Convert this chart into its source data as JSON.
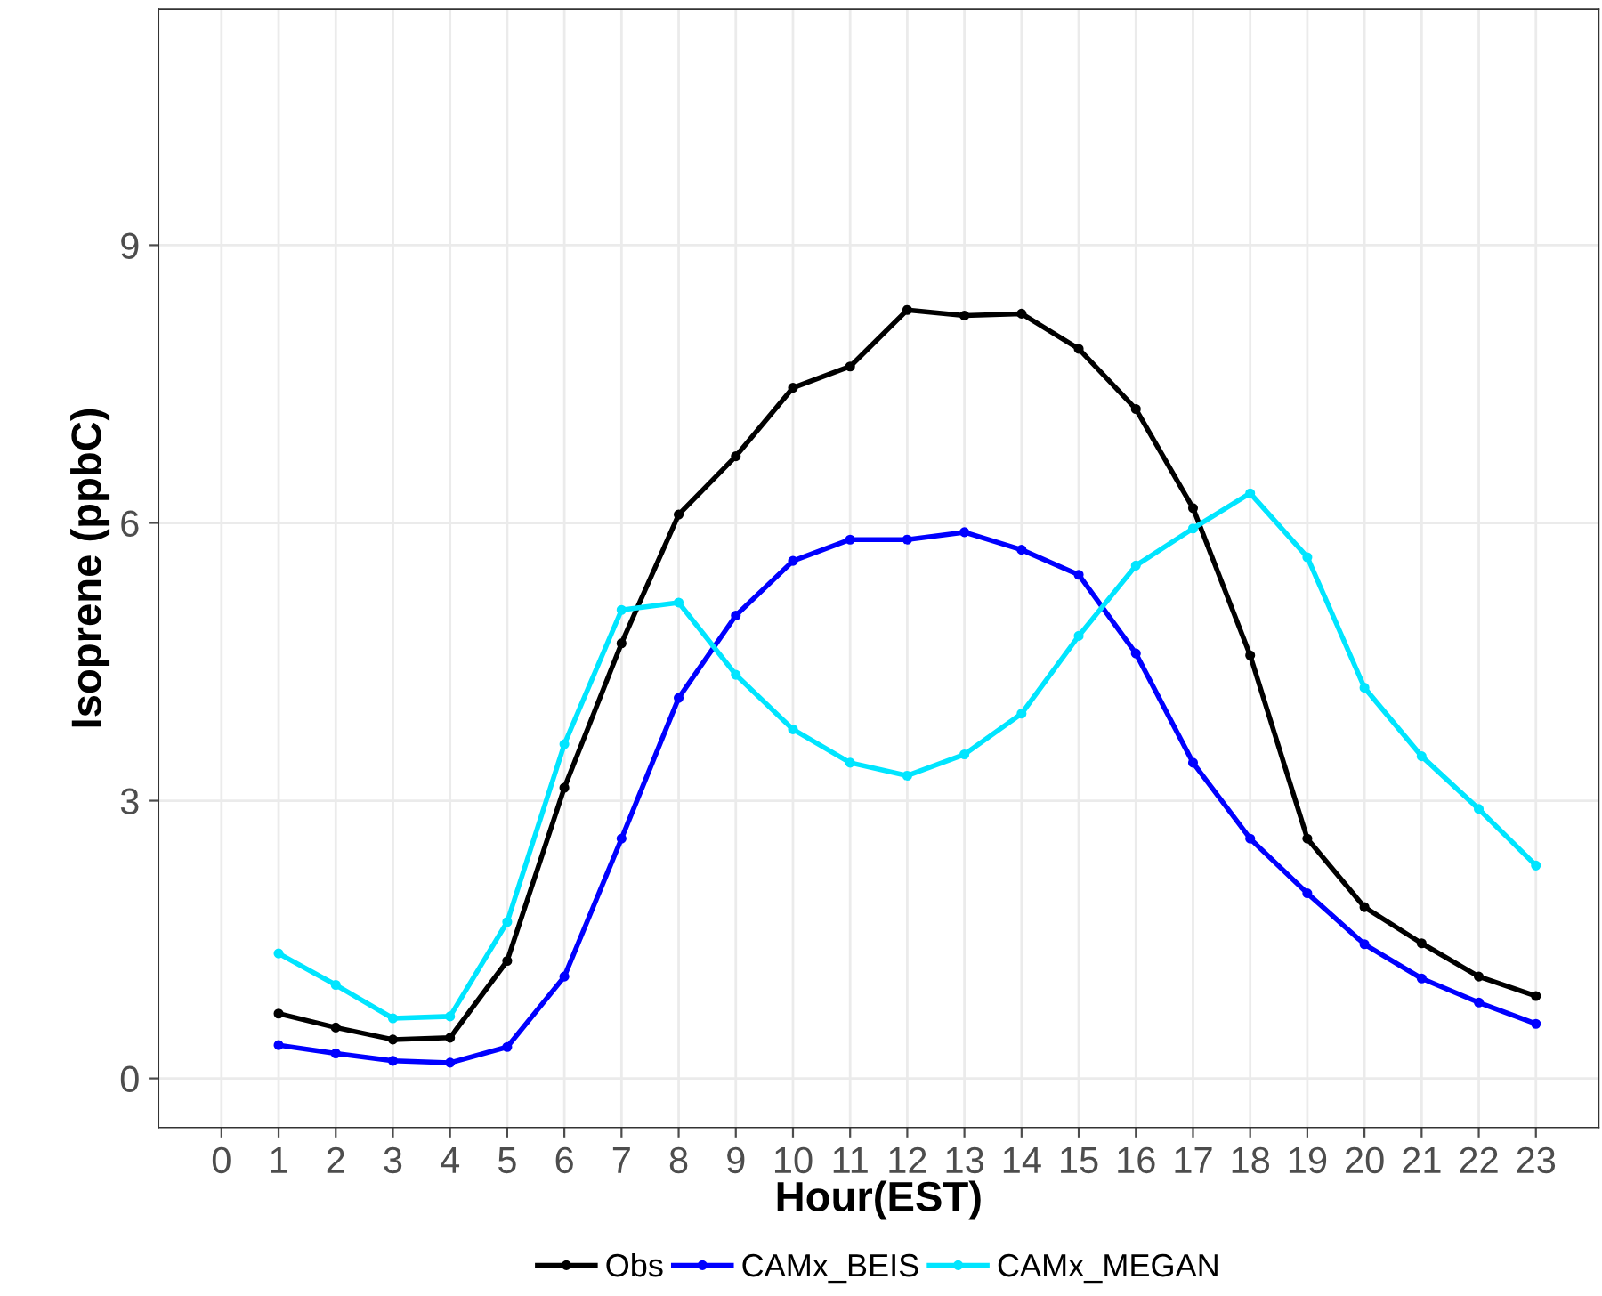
{
  "chart_data": {
    "type": "line",
    "xlabel": "Hour(EST)",
    "ylabel": "Isoprene (ppbC)",
    "x": [
      1,
      2,
      3,
      4,
      5,
      6,
      7,
      8,
      9,
      10,
      11,
      12,
      13,
      14,
      15,
      16,
      17,
      18,
      19,
      20,
      21,
      22,
      23
    ],
    "series": [
      {
        "name": "Obs",
        "color": "#000000",
        "values": [
          0.7,
          0.55,
          0.42,
          0.44,
          1.27,
          3.14,
          4.7,
          6.09,
          6.72,
          7.46,
          7.69,
          8.3,
          8.24,
          8.26,
          7.88,
          7.23,
          6.16,
          4.57,
          2.59,
          1.85,
          1.46,
          1.1,
          0.89
        ]
      },
      {
        "name": "CAMx_BEIS",
        "color": "#0000ff",
        "values": [
          0.36,
          0.27,
          0.19,
          0.17,
          0.34,
          1.1,
          2.59,
          4.11,
          5.0,
          5.59,
          5.82,
          5.82,
          5.9,
          5.71,
          5.44,
          4.59,
          3.41,
          2.59,
          2.0,
          1.45,
          1.08,
          0.82,
          0.59
        ]
      },
      {
        "name": "CAMx_MEGAN",
        "color": "#00e5ff",
        "values": [
          1.35,
          1.01,
          0.65,
          0.67,
          1.69,
          3.61,
          5.06,
          5.14,
          4.36,
          3.77,
          3.41,
          3.27,
          3.5,
          3.94,
          4.78,
          5.54,
          5.94,
          6.32,
          5.63,
          4.22,
          3.48,
          2.91,
          2.3
        ]
      }
    ],
    "xlim": [
      -1.1,
      24.1
    ],
    "xticks": [
      0,
      1,
      2,
      3,
      4,
      5,
      6,
      7,
      8,
      9,
      10,
      11,
      12,
      13,
      14,
      15,
      16,
      17,
      18,
      19,
      20,
      21,
      22,
      23
    ],
    "ylim": [
      -0.53,
      11.55
    ],
    "yticks": [
      0,
      3,
      6,
      9
    ],
    "grid": true,
    "legend": "bottom",
    "marker": "circle",
    "line_style": "solid"
  }
}
